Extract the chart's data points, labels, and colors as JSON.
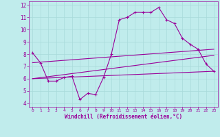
{
  "xlabel": "Windchill (Refroidissement éolien,°C)",
  "background_color": "#c0ecec",
  "line_color": "#990099",
  "xlim": [
    -0.5,
    23.5
  ],
  "ylim": [
    3.7,
    12.3
  ],
  "yticks": [
    4,
    5,
    6,
    7,
    8,
    9,
    10,
    11,
    12
  ],
  "xticks": [
    0,
    1,
    2,
    3,
    4,
    5,
    6,
    7,
    8,
    9,
    10,
    11,
    12,
    13,
    14,
    15,
    16,
    17,
    18,
    19,
    20,
    21,
    22,
    23
  ],
  "series1_x": [
    0,
    1,
    2,
    3,
    4,
    5,
    6,
    7,
    8,
    9,
    10,
    11,
    12,
    13,
    14,
    15,
    16,
    17,
    18,
    19,
    20,
    21,
    22,
    23
  ],
  "series1_y": [
    8.1,
    7.3,
    5.8,
    5.8,
    6.1,
    6.2,
    4.3,
    4.8,
    4.7,
    6.1,
    8.0,
    10.8,
    11.0,
    11.4,
    11.4,
    11.4,
    11.8,
    10.8,
    10.5,
    9.3,
    8.8,
    8.4,
    7.2,
    6.6
  ],
  "series2_x": [
    0,
    23
  ],
  "series2_y": [
    6.0,
    7.9
  ],
  "series3_x": [
    0,
    23
  ],
  "series3_y": [
    7.3,
    8.4
  ],
  "series4_x": [
    0,
    23
  ],
  "series4_y": [
    6.0,
    6.6
  ]
}
